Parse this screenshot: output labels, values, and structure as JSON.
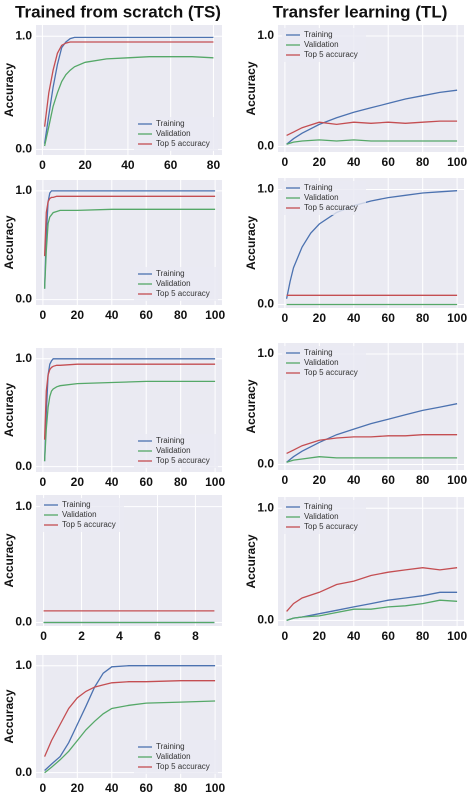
{
  "headers": [
    "Trained from scratch (TS)",
    "Transfer learning (TL)"
  ],
  "chart_data": [
    {
      "type": "line",
      "ylabel": "Accuracy",
      "legend": "lower right",
      "grid": true,
      "x": [
        1,
        3,
        5,
        7,
        9,
        11,
        13,
        15,
        20,
        30,
        40,
        50,
        60,
        70,
        80
      ],
      "xlim": [
        -3,
        84
      ],
      "xticks": [
        0,
        20,
        40,
        60,
        80
      ],
      "ylim": [
        -0.05,
        1.1
      ],
      "yticks": [
        {
          "value": 0,
          "label": "0.0"
        },
        {
          "value": 1,
          "label": "1.0"
        }
      ],
      "series": [
        {
          "name": "Training",
          "color": "#4c72b0",
          "values": [
            0.05,
            0.3,
            0.55,
            0.75,
            0.9,
            0.95,
            0.98,
            0.99,
            0.99,
            0.99,
            0.99,
            0.99,
            0.99,
            0.99,
            0.99
          ]
        },
        {
          "name": "Validation",
          "color": "#55a868",
          "values": [
            0.03,
            0.2,
            0.38,
            0.5,
            0.6,
            0.66,
            0.7,
            0.73,
            0.77,
            0.8,
            0.81,
            0.82,
            0.82,
            0.82,
            0.81
          ]
        },
        {
          "name": "Top 5 accuracy",
          "color": "#c44e52",
          "values": [
            0.2,
            0.5,
            0.7,
            0.85,
            0.92,
            0.94,
            0.95,
            0.95,
            0.95,
            0.95,
            0.95,
            0.95,
            0.95,
            0.95,
            0.95
          ]
        }
      ]
    },
    {
      "type": "line",
      "ylabel": "Accuracy",
      "legend": "lower right",
      "grid": true,
      "x": [
        1,
        2,
        3,
        4,
        5,
        6,
        8,
        10,
        20,
        40,
        60,
        80,
        100
      ],
      "xlim": [
        -4,
        104
      ],
      "xticks": [
        0,
        20,
        40,
        60,
        80,
        100
      ],
      "ylim": [
        -0.05,
        1.1
      ],
      "yticks": [
        {
          "value": 0,
          "label": "0.0"
        },
        {
          "value": 1,
          "label": "1.0"
        }
      ],
      "series": [
        {
          "name": "Training",
          "color": "#4c72b0",
          "values": [
            0.1,
            0.6,
            0.9,
            0.98,
            1.0,
            1.0,
            1.0,
            1.0,
            1.0,
            1.0,
            1.0,
            1.0,
            1.0
          ]
        },
        {
          "name": "Validation",
          "color": "#55a868",
          "values": [
            0.1,
            0.45,
            0.7,
            0.76,
            0.78,
            0.8,
            0.81,
            0.82,
            0.82,
            0.83,
            0.83,
            0.83,
            0.83
          ]
        },
        {
          "name": "Top 5 accuracy",
          "color": "#c44e52",
          "values": [
            0.4,
            0.8,
            0.9,
            0.93,
            0.94,
            0.94,
            0.95,
            0.95,
            0.95,
            0.95,
            0.95,
            0.95,
            0.95
          ]
        }
      ]
    },
    {
      "type": "line",
      "ylabel": "Accuracy",
      "legend": "lower right",
      "grid": true,
      "x": [
        1,
        2,
        3,
        4,
        5,
        6,
        8,
        10,
        20,
        40,
        60,
        80,
        100
      ],
      "xlim": [
        -4,
        104
      ],
      "xticks": [
        0,
        20,
        40,
        60,
        80,
        100
      ],
      "ylim": [
        -0.05,
        1.1
      ],
      "yticks": [
        {
          "value": 0,
          "label": "0.0"
        },
        {
          "value": 1,
          "label": "1.0"
        }
      ],
      "series": [
        {
          "name": "Training",
          "color": "#4c72b0",
          "values": [
            0.05,
            0.5,
            0.85,
            0.95,
            0.98,
            1.0,
            1.0,
            1.0,
            1.0,
            1.0,
            1.0,
            1.0,
            1.0
          ]
        },
        {
          "name": "Validation",
          "color": "#55a868",
          "values": [
            0.05,
            0.35,
            0.55,
            0.65,
            0.7,
            0.72,
            0.74,
            0.75,
            0.77,
            0.78,
            0.79,
            0.79,
            0.79
          ]
        },
        {
          "name": "Top 5 accuracy",
          "color": "#c44e52",
          "values": [
            0.25,
            0.7,
            0.85,
            0.9,
            0.92,
            0.93,
            0.94,
            0.94,
            0.95,
            0.95,
            0.95,
            0.95,
            0.95
          ]
        }
      ]
    },
    {
      "type": "line",
      "ylabel": "Accuracy",
      "legend": "upper left",
      "grid": true,
      "x": [
        0,
        9
      ],
      "xlim": [
        -0.4,
        9.4
      ],
      "xticks": [
        0,
        2,
        4,
        6,
        8
      ],
      "ylim": [
        -0.03,
        1.1
      ],
      "yticks": [
        {
          "value": 0,
          "label": "0.0"
        },
        {
          "value": 1,
          "label": "1.0"
        }
      ],
      "series": [
        {
          "name": "Training",
          "color": "#4c72b0",
          "values": [
            0.0,
            0.0
          ]
        },
        {
          "name": "Validation",
          "color": "#55a868",
          "values": [
            0.0,
            0.0
          ]
        },
        {
          "name": "Top 5 accuracy",
          "color": "#c44e52",
          "values": [
            0.1,
            0.1
          ]
        }
      ]
    },
    {
      "type": "line",
      "ylabel": "Accuracy",
      "legend": "lower right",
      "grid": true,
      "x": [
        1,
        5,
        10,
        15,
        20,
        25,
        30,
        35,
        40,
        50,
        60,
        80,
        100
      ],
      "xlim": [
        -4,
        104
      ],
      "xticks": [
        0,
        20,
        40,
        60,
        80,
        100
      ],
      "ylim": [
        -0.05,
        1.1
      ],
      "yticks": [
        {
          "value": 0,
          "label": "0.0"
        },
        {
          "value": 1,
          "label": "1.0"
        }
      ],
      "series": [
        {
          "name": "Training",
          "color": "#4c72b0",
          "values": [
            0.02,
            0.08,
            0.15,
            0.28,
            0.45,
            0.62,
            0.8,
            0.93,
            0.99,
            1.0,
            1.0,
            1.0,
            1.0
          ]
        },
        {
          "name": "Validation",
          "color": "#55a868",
          "values": [
            0.0,
            0.05,
            0.12,
            0.2,
            0.3,
            0.4,
            0.48,
            0.55,
            0.6,
            0.63,
            0.65,
            0.66,
            0.67
          ]
        },
        {
          "name": "Top 5 accuracy",
          "color": "#c44e52",
          "values": [
            0.15,
            0.3,
            0.45,
            0.6,
            0.7,
            0.76,
            0.8,
            0.82,
            0.84,
            0.85,
            0.85,
            0.86,
            0.86
          ]
        }
      ]
    },
    {
      "type": "line",
      "ylabel": "Accuracy",
      "legend": "upper left",
      "grid": true,
      "x": [
        1,
        5,
        10,
        20,
        30,
        40,
        50,
        60,
        70,
        80,
        90,
        100
      ],
      "xlim": [
        -4,
        104
      ],
      "xticks": [
        0,
        20,
        40,
        60,
        80,
        100
      ],
      "ylim": [
        -0.05,
        1.1
      ],
      "yticks": [
        {
          "value": 0,
          "label": "0.0"
        },
        {
          "value": 1,
          "label": "1.0"
        }
      ],
      "series": [
        {
          "name": "Training",
          "color": "#4c72b0",
          "values": [
            0.02,
            0.07,
            0.12,
            0.2,
            0.26,
            0.31,
            0.35,
            0.39,
            0.43,
            0.46,
            0.49,
            0.51
          ]
        },
        {
          "name": "Validation",
          "color": "#55a868",
          "values": [
            0.02,
            0.04,
            0.05,
            0.06,
            0.05,
            0.06,
            0.05,
            0.05,
            0.05,
            0.05,
            0.05,
            0.05
          ]
        },
        {
          "name": "Top 5 accuracy",
          "color": "#c44e52",
          "values": [
            0.1,
            0.13,
            0.17,
            0.22,
            0.2,
            0.22,
            0.21,
            0.22,
            0.21,
            0.22,
            0.23,
            0.23
          ]
        }
      ]
    },
    {
      "type": "line",
      "ylabel": "Accuracy",
      "legend": "upper left",
      "grid": true,
      "x": [
        1,
        3,
        5,
        10,
        15,
        20,
        30,
        40,
        50,
        60,
        70,
        80,
        90,
        100
      ],
      "xlim": [
        -4,
        104
      ],
      "xticks": [
        0,
        20,
        40,
        60,
        80,
        100
      ],
      "ylim": [
        -0.03,
        1.1
      ],
      "yticks": [
        {
          "value": 0,
          "label": "0.0"
        },
        {
          "value": 1,
          "label": "1.0"
        }
      ],
      "series": [
        {
          "name": "Training",
          "color": "#4c72b0",
          "values": [
            0.05,
            0.2,
            0.32,
            0.5,
            0.62,
            0.7,
            0.8,
            0.86,
            0.9,
            0.93,
            0.95,
            0.97,
            0.98,
            0.99
          ]
        },
        {
          "name": "Validation",
          "color": "#55a868",
          "values": [
            0.0,
            0.0,
            0.0,
            0.0,
            0.0,
            0.0,
            0.0,
            0.0,
            0.0,
            0.0,
            0.0,
            0.0,
            0.0,
            0.0
          ]
        },
        {
          "name": "Top 5 accuracy",
          "color": "#c44e52",
          "values": [
            0.08,
            0.08,
            0.08,
            0.08,
            0.08,
            0.08,
            0.08,
            0.08,
            0.08,
            0.08,
            0.08,
            0.08,
            0.08,
            0.08
          ]
        }
      ]
    },
    {
      "type": "line",
      "ylabel": "Accuracy",
      "legend": "upper left",
      "grid": true,
      "x": [
        1,
        5,
        10,
        20,
        30,
        40,
        50,
        60,
        70,
        80,
        90,
        100
      ],
      "xlim": [
        -4,
        104
      ],
      "xticks": [
        0,
        20,
        40,
        60,
        80,
        100
      ],
      "ylim": [
        -0.05,
        1.1
      ],
      "yticks": [
        {
          "value": 0,
          "label": "0.0"
        },
        {
          "value": 1,
          "label": "1.0"
        }
      ],
      "series": [
        {
          "name": "Training",
          "color": "#4c72b0",
          "values": [
            0.02,
            0.07,
            0.12,
            0.2,
            0.27,
            0.32,
            0.37,
            0.41,
            0.45,
            0.49,
            0.52,
            0.55
          ]
        },
        {
          "name": "Validation",
          "color": "#55a868",
          "values": [
            0.02,
            0.04,
            0.05,
            0.07,
            0.06,
            0.06,
            0.06,
            0.06,
            0.06,
            0.06,
            0.06,
            0.06
          ]
        },
        {
          "name": "Top 5 accuracy",
          "color": "#c44e52",
          "values": [
            0.1,
            0.13,
            0.17,
            0.22,
            0.24,
            0.25,
            0.25,
            0.26,
            0.26,
            0.27,
            0.27,
            0.27
          ]
        }
      ]
    },
    {
      "type": "line",
      "ylabel": "Accuracy",
      "legend": "upper left",
      "grid": true,
      "x": [
        1,
        5,
        10,
        20,
        30,
        40,
        50,
        60,
        70,
        80,
        90,
        100
      ],
      "xlim": [
        -4,
        104
      ],
      "xticks": [
        0,
        20,
        40,
        60,
        80,
        100
      ],
      "ylim": [
        -0.05,
        1.1
      ],
      "yticks": [
        {
          "value": 0,
          "label": "0.0"
        },
        {
          "value": 1,
          "label": "1.0"
        }
      ],
      "series": [
        {
          "name": "Training",
          "color": "#4c72b0",
          "values": [
            0.0,
            0.02,
            0.03,
            0.06,
            0.09,
            0.12,
            0.15,
            0.18,
            0.2,
            0.22,
            0.25,
            0.25
          ]
        },
        {
          "name": "Validation",
          "color": "#55a868",
          "values": [
            0.0,
            0.02,
            0.03,
            0.04,
            0.07,
            0.1,
            0.1,
            0.12,
            0.13,
            0.15,
            0.18,
            0.17
          ]
        },
        {
          "name": "Top 5 accuracy",
          "color": "#c44e52",
          "values": [
            0.08,
            0.15,
            0.2,
            0.25,
            0.32,
            0.35,
            0.4,
            0.43,
            0.45,
            0.47,
            0.45,
            0.47
          ]
        }
      ]
    }
  ]
}
